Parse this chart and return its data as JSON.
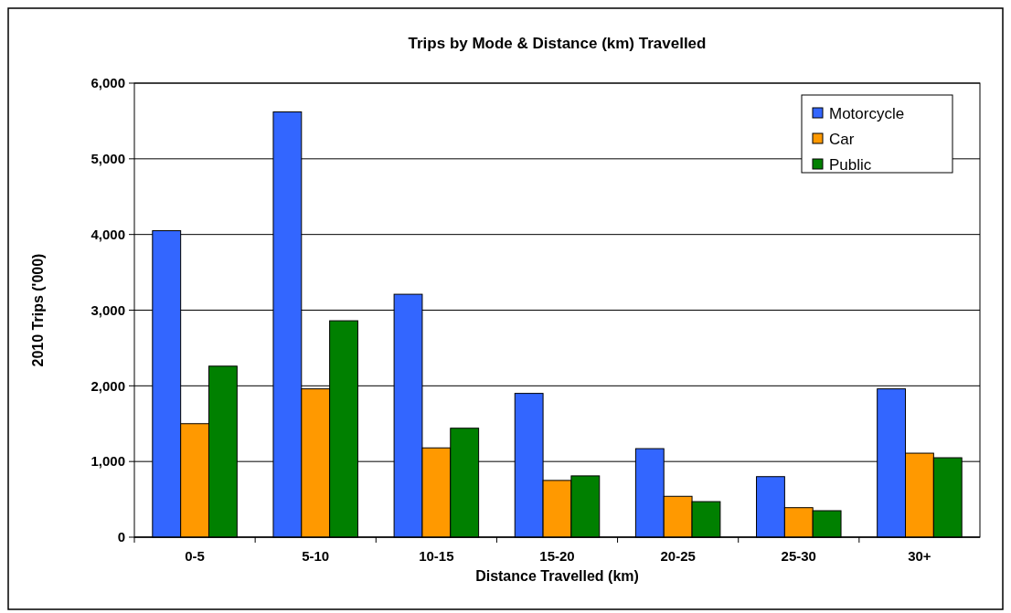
{
  "chart_data": {
    "type": "bar",
    "title": "Trips by Mode & Distance (km) Travelled",
    "xlabel": "Distance Travelled (km)",
    "ylabel": "2010 Trips ('000)",
    "categories": [
      "0-5",
      "5-10",
      "10-15",
      "15-20",
      "20-25",
      "25-30",
      "30+"
    ],
    "series": [
      {
        "name": "Motorcycle",
        "color": "#3366ff",
        "values": [
          4050,
          5620,
          3210,
          1900,
          1170,
          800,
          1960
        ]
      },
      {
        "name": "Car",
        "color": "#ff9900",
        "values": [
          1500,
          1960,
          1180,
          750,
          540,
          390,
          1110
        ]
      },
      {
        "name": "Public",
        "color": "#008000",
        "values": [
          2260,
          2860,
          1440,
          810,
          470,
          350,
          1050
        ]
      }
    ],
    "ylim": [
      0,
      6000
    ],
    "yticks": [
      {
        "value": 0,
        "label": "0"
      },
      {
        "value": 1000,
        "label": "1,000"
      },
      {
        "value": 2000,
        "label": "2,000"
      },
      {
        "value": 3000,
        "label": "3,000"
      },
      {
        "value": 4000,
        "label": "4,000"
      },
      {
        "value": 5000,
        "label": "5,000"
      },
      {
        "value": 6000,
        "label": "6,000"
      }
    ],
    "grid": "y",
    "legend": "top right"
  }
}
